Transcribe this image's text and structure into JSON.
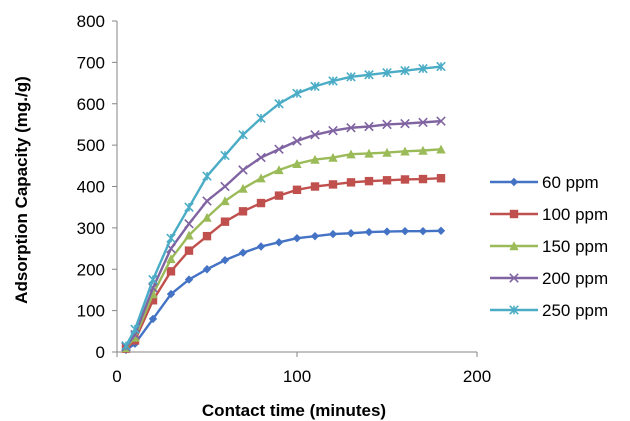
{
  "chart_data": {
    "type": "line",
    "xlabel": "Contact time (minutes)",
    "ylabel": "Adsorption Capacity (mg./g)",
    "xlim": [
      0,
      200
    ],
    "ylim": [
      0,
      800
    ],
    "xticks": [
      0,
      100,
      200
    ],
    "yticks": [
      0,
      100,
      200,
      300,
      400,
      500,
      600,
      700,
      800
    ],
    "grid": false,
    "legend_position": "right",
    "x": [
      5,
      10,
      20,
      30,
      40,
      50,
      60,
      70,
      80,
      90,
      100,
      110,
      120,
      130,
      140,
      150,
      160,
      170,
      180
    ],
    "series": [
      {
        "name": "60 ppm",
        "color": "#4472C4",
        "marker": "diamond",
        "values": [
          5,
          20,
          80,
          140,
          175,
          200,
          222,
          240,
          255,
          265,
          275,
          280,
          285,
          287,
          290,
          291,
          292,
          292,
          293
        ]
      },
      {
        "name": "100 ppm",
        "color": "#C0504D",
        "marker": "square",
        "values": [
          8,
          28,
          125,
          195,
          245,
          280,
          315,
          340,
          360,
          378,
          392,
          400,
          405,
          410,
          413,
          415,
          417,
          418,
          420
        ]
      },
      {
        "name": "150 ppm",
        "color": "#9BBB59",
        "marker": "triangle",
        "values": [
          10,
          35,
          140,
          225,
          282,
          325,
          365,
          395,
          420,
          440,
          455,
          465,
          470,
          478,
          480,
          482,
          485,
          487,
          490
        ]
      },
      {
        "name": "200 ppm",
        "color": "#8064A2",
        "marker": "x",
        "values": [
          12,
          42,
          155,
          250,
          310,
          365,
          400,
          440,
          470,
          490,
          510,
          525,
          535,
          542,
          545,
          550,
          552,
          555,
          558
        ]
      },
      {
        "name": "250 ppm",
        "color": "#4BACC6",
        "marker": "star",
        "values": [
          15,
          55,
          175,
          275,
          350,
          425,
          475,
          525,
          565,
          600,
          625,
          642,
          655,
          665,
          670,
          675,
          680,
          685,
          690
        ]
      }
    ]
  }
}
